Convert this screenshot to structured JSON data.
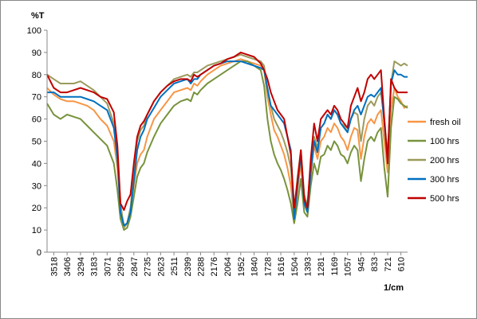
{
  "chart_data": {
    "type": "line",
    "ylabel": "%T",
    "xlabel": "1/cm",
    "ylim": [
      0,
      100
    ],
    "yticks": [
      0,
      10,
      20,
      30,
      40,
      50,
      60,
      70,
      80,
      90,
      100
    ],
    "xlim": [
      3574,
      554
    ],
    "xticks": [
      3518,
      3406,
      3294,
      3183,
      3071,
      2959,
      2847,
      2735,
      2623,
      2511,
      2399,
      2288,
      2176,
      2064,
      1952,
      1840,
      1728,
      1616,
      1504,
      1393,
      1281,
      1169,
      1057,
      945,
      833,
      721,
      610
    ],
    "grid": {
      "x": false,
      "y": false
    },
    "legend": "right",
    "x": [
      3574,
      3518,
      3462,
      3406,
      3350,
      3294,
      3238,
      3183,
      3127,
      3071,
      3015,
      2985,
      2959,
      2930,
      2903,
      2875,
      2847,
      2819,
      2791,
      2763,
      2735,
      2679,
      2623,
      2567,
      2511,
      2455,
      2399,
      2370,
      2343,
      2315,
      2288,
      2232,
      2176,
      2120,
      2064,
      2008,
      1952,
      1896,
      1840,
      1784,
      1756,
      1728,
      1700,
      1672,
      1644,
      1616,
      1588,
      1560,
      1532,
      1504,
      1476,
      1448,
      1420,
      1393,
      1365,
      1337,
      1309,
      1281,
      1253,
      1225,
      1197,
      1169,
      1141,
      1113,
      1085,
      1057,
      1029,
      1001,
      973,
      945,
      917,
      889,
      861,
      833,
      805,
      777,
      749,
      721,
      693,
      665,
      637,
      610,
      582,
      554
    ],
    "series": [
      {
        "name": "fresh oil",
        "color": "#F79646",
        "values": [
          74,
          71,
          69,
          68,
          68,
          67,
          66,
          64,
          60,
          57,
          50,
          38,
          20,
          12,
          13,
          20,
          30,
          40,
          44,
          46,
          52,
          60,
          64,
          68,
          72,
          73,
          74,
          73,
          76,
          75,
          77,
          80,
          82,
          84,
          85,
          86,
          87,
          86,
          85,
          84,
          82,
          70,
          62,
          55,
          52,
          48,
          44,
          38,
          30,
          15,
          28,
          40,
          22,
          18,
          35,
          48,
          42,
          50,
          52,
          56,
          54,
          58,
          56,
          52,
          50,
          46,
          52,
          56,
          55,
          42,
          52,
          58,
          60,
          58,
          62,
          64,
          50,
          36,
          64,
          74,
          70,
          68,
          65,
          66
        ]
      },
      {
        "name": "100 hrs",
        "color": "#77933C",
        "values": [
          67,
          62,
          60,
          62,
          61,
          60,
          57,
          54,
          51,
          48,
          40,
          28,
          15,
          10,
          11,
          16,
          25,
          34,
          38,
          40,
          45,
          52,
          58,
          62,
          66,
          68,
          69,
          68,
          72,
          71,
          73,
          76,
          78,
          80,
          82,
          84,
          86,
          86,
          84,
          82,
          75,
          60,
          50,
          44,
          40,
          37,
          33,
          28,
          22,
          13,
          22,
          33,
          18,
          16,
          30,
          40,
          35,
          43,
          44,
          48,
          46,
          50,
          48,
          44,
          43,
          40,
          45,
          48,
          46,
          32,
          42,
          50,
          52,
          50,
          54,
          56,
          38,
          25,
          56,
          70,
          69,
          67,
          66,
          65
        ]
      },
      {
        "name": "200 hrs",
        "color": "#9B9A5C",
        "values": [
          80,
          78,
          76,
          76,
          76,
          77,
          75,
          73,
          70,
          67,
          58,
          44,
          22,
          11,
          13,
          20,
          36,
          50,
          55,
          57,
          62,
          68,
          72,
          75,
          78,
          79,
          80,
          79,
          81,
          81,
          82,
          84,
          85,
          86,
          87,
          88,
          89,
          88,
          87,
          86,
          84,
          72,
          66,
          60,
          57,
          54,
          50,
          45,
          38,
          18,
          34,
          46,
          26,
          21,
          40,
          52,
          47,
          56,
          58,
          62,
          60,
          64,
          62,
          58,
          57,
          54,
          60,
          63,
          62,
          50,
          60,
          66,
          68,
          66,
          70,
          72,
          60,
          44,
          76,
          86,
          85,
          84,
          85,
          84
        ]
      },
      {
        "name": "300 hrs",
        "color": "#0070C0",
        "values": [
          72,
          72,
          70,
          70,
          70,
          70,
          69,
          68,
          66,
          64,
          56,
          42,
          18,
          12,
          13,
          18,
          32,
          46,
          52,
          55,
          60,
          65,
          70,
          73,
          76,
          77,
          78,
          76,
          78,
          78,
          80,
          82,
          84,
          85,
          86,
          86,
          86,
          85,
          84,
          83,
          82,
          74,
          66,
          64,
          62,
          60,
          58,
          52,
          46,
          15,
          30,
          44,
          22,
          18,
          36,
          50,
          45,
          56,
          58,
          62,
          60,
          64,
          62,
          58,
          56,
          54,
          60,
          64,
          66,
          62,
          66,
          70,
          71,
          70,
          72,
          74,
          58,
          42,
          76,
          82,
          80,
          80,
          79,
          79
        ]
      },
      {
        "name": "500 hrs",
        "color": "#C00000",
        "values": [
          80,
          74,
          72,
          72,
          73,
          74,
          73,
          72,
          70,
          69,
          63,
          48,
          22,
          19,
          23,
          26,
          40,
          52,
          57,
          59,
          62,
          68,
          72,
          75,
          77,
          78,
          78,
          77,
          80,
          79,
          80,
          82,
          84,
          85,
          87,
          88,
          90,
          89,
          88,
          85,
          82,
          78,
          72,
          68,
          64,
          62,
          60,
          52,
          44,
          20,
          32,
          46,
          24,
          20,
          42,
          58,
          50,
          60,
          62,
          64,
          62,
          66,
          64,
          60,
          58,
          56,
          66,
          70,
          74,
          68,
          72,
          78,
          80,
          78,
          80,
          82,
          60,
          40,
          78,
          74,
          72,
          72,
          72,
          72
        ]
      }
    ]
  }
}
